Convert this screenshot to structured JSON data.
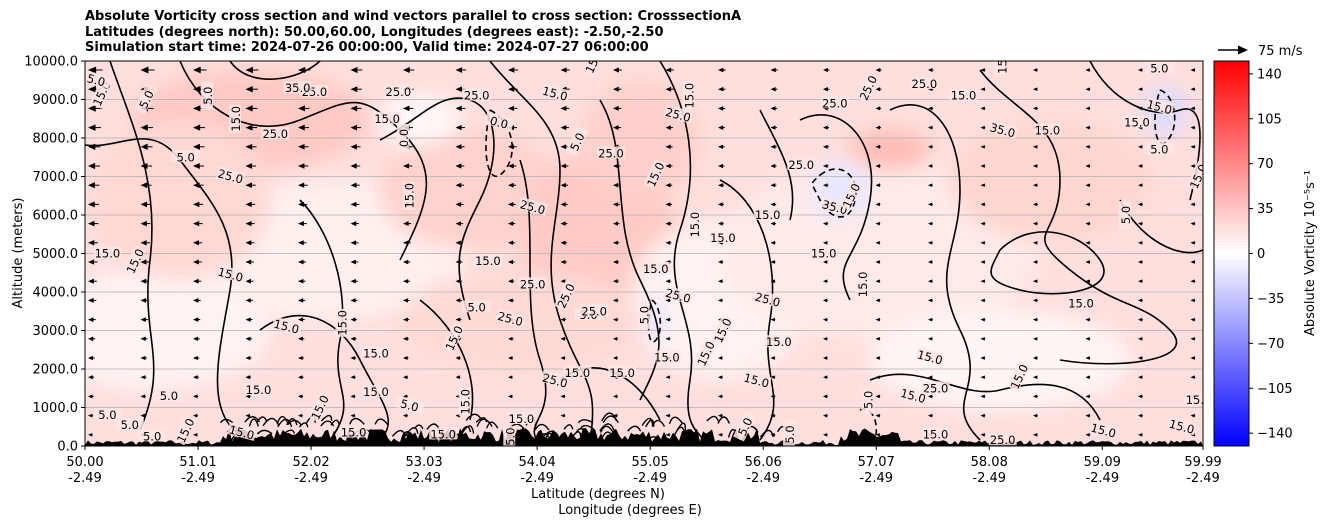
{
  "chart_data": {
    "type": "contour",
    "title_lines": [
      "Absolute Vorticity cross section and wind vectors parallel to cross section: CrosssectionA",
      "Latitudes (degrees north): 50.00,60.00, Longitudes (degrees east): -2.50,-2.50",
      "Simulation start time: 2024-07-26 00:00:00, Valid time: 2024-07-27 06:00:00"
    ],
    "xlabel_lines": [
      "Latitude (degrees N)",
      "Longitude (degrees E)"
    ],
    "ylabel": "Altitude (meters)",
    "x_ticks": [
      {
        "lat": 50.0,
        "lat_label": "50.00",
        "lon_label": "-2.49"
      },
      {
        "lat": 51.01,
        "lat_label": "51.01",
        "lon_label": "-2.49"
      },
      {
        "lat": 52.02,
        "lat_label": "52.02",
        "lon_label": "-2.49"
      },
      {
        "lat": 53.03,
        "lat_label": "53.03",
        "lon_label": "-2.49"
      },
      {
        "lat": 54.04,
        "lat_label": "54.04",
        "lon_label": "-2.49"
      },
      {
        "lat": 55.05,
        "lat_label": "55.05",
        "lon_label": "-2.49"
      },
      {
        "lat": 56.06,
        "lat_label": "56.06",
        "lon_label": "-2.49"
      },
      {
        "lat": 57.07,
        "lat_label": "57.07",
        "lon_label": "-2.49"
      },
      {
        "lat": 58.08,
        "lat_label": "58.08",
        "lon_label": "-2.49"
      },
      {
        "lat": 59.09,
        "lat_label": "59.09",
        "lon_label": "-2.49"
      },
      {
        "lat": 59.99,
        "lat_label": "59.99",
        "lon_label": "-2.49"
      }
    ],
    "xlim": [
      50.0,
      59.99
    ],
    "y_ticks": [
      {
        "value": 0,
        "label": "0.0"
      },
      {
        "value": 1000,
        "label": "1000.0"
      },
      {
        "value": 2000,
        "label": "2000.0"
      },
      {
        "value": 3000,
        "label": "3000.0"
      },
      {
        "value": 4000,
        "label": "4000.0"
      },
      {
        "value": 5000,
        "label": "5000.0"
      },
      {
        "value": 6000,
        "label": "6000.0"
      },
      {
        "value": 7000,
        "label": "7000.0"
      },
      {
        "value": 8000,
        "label": "8000.0"
      },
      {
        "value": 9000,
        "label": "9000.0"
      },
      {
        "value": 10000,
        "label": "10000.0"
      }
    ],
    "ylim": [
      0,
      10000
    ],
    "grid": "horizontal",
    "colorbar": {
      "label": "Absolute Vorticity 10⁻⁵s⁻¹",
      "range": [
        -150,
        150
      ],
      "cmap": "bwr",
      "ticks": [
        {
          "value": 140,
          "label": "140"
        },
        {
          "value": 105,
          "label": "105"
        },
        {
          "value": 70,
          "label": "70"
        },
        {
          "value": 35,
          "label": "35"
        },
        {
          "value": 0,
          "label": "0"
        },
        {
          "value": -35,
          "label": "−35"
        },
        {
          "value": -70,
          "label": "−70"
        },
        {
          "value": -105,
          "label": "−105"
        },
        {
          "value": -140,
          "label": "−140"
        }
      ]
    },
    "quiver_key": {
      "label": "75 m/s"
    },
    "contour_labels": [
      {
        "lat": 51.35,
        "alt": 8500,
        "text": "15.0"
      },
      {
        "lat": 52.05,
        "alt": 9200,
        "text": "25.0"
      },
      {
        "lat": 52.8,
        "alt": 9200,
        "text": "25.0"
      },
      {
        "lat": 54.2,
        "alt": 9150,
        "text": "15.0"
      },
      {
        "lat": 56.4,
        "alt": 7300,
        "text": "25.0"
      },
      {
        "lat": 55.1,
        "alt": 7050,
        "text": "15.0"
      },
      {
        "lat": 51.3,
        "alt": 4450,
        "text": "15.0"
      },
      {
        "lat": 55.45,
        "alt": 5750,
        "text": "15.0"
      },
      {
        "lat": 54.5,
        "alt": 3400,
        "text": "5.0"
      },
      {
        "lat": 57.55,
        "alt": 2300,
        "text": "15.0"
      },
      {
        "lat": 58.35,
        "alt": 1800,
        "text": "15.0"
      },
      {
        "lat": 58.9,
        "alt": 3700,
        "text": "15.0"
      },
      {
        "lat": 59.6,
        "alt": 8800,
        "text": "15.0"
      },
      {
        "lat": 59.4,
        "alt": 8400,
        "text": "15.0"
      },
      {
        "lat": 58.2,
        "alt": 10000,
        "text": "15.0"
      },
      {
        "lat": 54.55,
        "alt": 10000,
        "text": "15.0"
      },
      {
        "lat": 50.4,
        "alt": 550,
        "text": "5.0"
      },
      {
        "lat": 53.9,
        "alt": 700,
        "text": "15.0"
      },
      {
        "lat": 59.1,
        "alt": 400,
        "text": "15.0"
      },
      {
        "lat": 58.2,
        "alt": 150,
        "text": "25.0"
      },
      {
        "lat": 50.15,
        "alt": 9150,
        "text": "15.0"
      },
      {
        "lat": 51.1,
        "alt": 9100,
        "text": "5.0"
      },
      {
        "lat": 51.9,
        "alt": 9300,
        "text": "35.0"
      },
      {
        "lat": 53.5,
        "alt": 9100,
        "text": "25.0"
      },
      {
        "lat": 53.7,
        "alt": 8400,
        "text": "0.0"
      },
      {
        "lat": 54.4,
        "alt": 7900,
        "text": "5.0"
      },
      {
        "lat": 54.7,
        "alt": 7600,
        "text": "25.0"
      },
      {
        "lat": 55.3,
        "alt": 8600,
        "text": "25.0"
      },
      {
        "lat": 55.4,
        "alt": 9100,
        "text": "15.0"
      },
      {
        "lat": 56.7,
        "alt": 8900,
        "text": "25.0"
      },
      {
        "lat": 57.0,
        "alt": 9300,
        "text": "25.0"
      },
      {
        "lat": 57.5,
        "alt": 9400,
        "text": "25.0"
      },
      {
        "lat": 57.85,
        "alt": 9100,
        "text": "15.0"
      },
      {
        "lat": 58.2,
        "alt": 8200,
        "text": "35.0"
      },
      {
        "lat": 58.6,
        "alt": 8200,
        "text": "15.0"
      },
      {
        "lat": 52.9,
        "alt": 6500,
        "text": "15.0"
      },
      {
        "lat": 54.0,
        "alt": 6200,
        "text": "25.0"
      },
      {
        "lat": 55.7,
        "alt": 5400,
        "text": "15.0"
      },
      {
        "lat": 56.1,
        "alt": 6000,
        "text": "15.0"
      },
      {
        "lat": 56.7,
        "alt": 6200,
        "text": "35.0"
      },
      {
        "lat": 56.85,
        "alt": 6500,
        "text": "15.0"
      },
      {
        "lat": 56.6,
        "alt": 5000,
        "text": "15.0"
      },
      {
        "lat": 56.95,
        "alt": 4200,
        "text": "15.0"
      },
      {
        "lat": 53.6,
        "alt": 4800,
        "text": "15.0"
      },
      {
        "lat": 54.0,
        "alt": 4200,
        "text": "25.0"
      },
      {
        "lat": 54.3,
        "alt": 3900,
        "text": "25.0"
      },
      {
        "lat": 54.55,
        "alt": 3500,
        "text": "25.0"
      },
      {
        "lat": 55.1,
        "alt": 4600,
        "text": "15.0"
      },
      {
        "lat": 55.3,
        "alt": 3900,
        "text": "25.0"
      },
      {
        "lat": 55.0,
        "alt": 3400,
        "text": "5.0"
      },
      {
        "lat": 55.7,
        "alt": 3000,
        "text": "15.0"
      },
      {
        "lat": 56.1,
        "alt": 3800,
        "text": "25.0"
      },
      {
        "lat": 56.2,
        "alt": 2700,
        "text": "15.0"
      },
      {
        "lat": 53.5,
        "alt": 3600,
        "text": "5.0"
      },
      {
        "lat": 53.8,
        "alt": 3300,
        "text": "25.0"
      },
      {
        "lat": 53.3,
        "alt": 2800,
        "text": "15.0"
      },
      {
        "lat": 52.3,
        "alt": 3200,
        "text": "15.0"
      },
      {
        "lat": 51.8,
        "alt": 3100,
        "text": "15.0"
      },
      {
        "lat": 52.6,
        "alt": 2400,
        "text": "15.0"
      },
      {
        "lat": 50.2,
        "alt": 5000,
        "text": "15.0"
      },
      {
        "lat": 50.45,
        "alt": 4800,
        "text": "15.0"
      },
      {
        "lat": 51.7,
        "alt": 8100,
        "text": "25.0"
      },
      {
        "lat": 52.7,
        "alt": 8500,
        "text": "15.0"
      },
      {
        "lat": 52.85,
        "alt": 8000,
        "text": "0.0"
      },
      {
        "lat": 55.2,
        "alt": 2300,
        "text": "15.0"
      },
      {
        "lat": 55.55,
        "alt": 2400,
        "text": "15.0"
      },
      {
        "lat": 54.2,
        "alt": 1700,
        "text": "25.0"
      },
      {
        "lat": 54.4,
        "alt": 1900,
        "text": "15.0"
      },
      {
        "lat": 54.8,
        "alt": 1900,
        "text": "15.0"
      },
      {
        "lat": 56.0,
        "alt": 1700,
        "text": "15.0"
      },
      {
        "lat": 57.0,
        "alt": 1200,
        "text": "5.0"
      },
      {
        "lat": 57.6,
        "alt": 1500,
        "text": "25.0"
      },
      {
        "lat": 57.4,
        "alt": 1300,
        "text": "15.0"
      },
      {
        "lat": 50.75,
        "alt": 1300,
        "text": "5.0"
      },
      {
        "lat": 51.55,
        "alt": 1450,
        "text": "15.0"
      },
      {
        "lat": 52.1,
        "alt": 1000,
        "text": "15.0"
      },
      {
        "lat": 52.6,
        "alt": 1400,
        "text": "15.0"
      },
      {
        "lat": 53.4,
        "alt": 1150,
        "text": "15.0"
      },
      {
        "lat": 52.9,
        "alt": 1050,
        "text": "5.0"
      },
      {
        "lat": 50.6,
        "alt": 250,
        "text": "5.0"
      },
      {
        "lat": 50.9,
        "alt": 400,
        "text": "15.0"
      },
      {
        "lat": 51.4,
        "alt": 350,
        "text": "15.0"
      },
      {
        "lat": 52.4,
        "alt": 350,
        "text": "15.0"
      },
      {
        "lat": 53.2,
        "alt": 300,
        "text": "15.0"
      },
      {
        "lat": 56.3,
        "alt": 300,
        "text": "5.0"
      },
      {
        "lat": 55.9,
        "alt": 500,
        "text": "5.0"
      },
      {
        "lat": 57.6,
        "alt": 300,
        "text": "15.0"
      },
      {
        "lat": 59.8,
        "alt": 500,
        "text": "15.0"
      },
      {
        "lat": 59.95,
        "alt": 1200,
        "text": "15.0"
      },
      {
        "lat": 59.6,
        "alt": 7700,
        "text": "5.0"
      },
      {
        "lat": 59.95,
        "alt": 7000,
        "text": "15.0"
      },
      {
        "lat": 59.3,
        "alt": 6000,
        "text": "5.0"
      },
      {
        "lat": 59.6,
        "alt": 9800,
        "text": "5.0"
      },
      {
        "lat": 50.1,
        "alt": 9500,
        "text": "5.0"
      },
      {
        "lat": 50.9,
        "alt": 7500,
        "text": "5.0"
      },
      {
        "lat": 50.55,
        "alt": 9000,
        "text": "5.0"
      },
      {
        "lat": 51.3,
        "alt": 7000,
        "text": "25.0"
      },
      {
        "lat": 50.2,
        "alt": 800,
        "text": "5.0"
      },
      {
        "lat": 53.8,
        "alt": 150,
        "text": "15.0"
      }
    ]
  }
}
